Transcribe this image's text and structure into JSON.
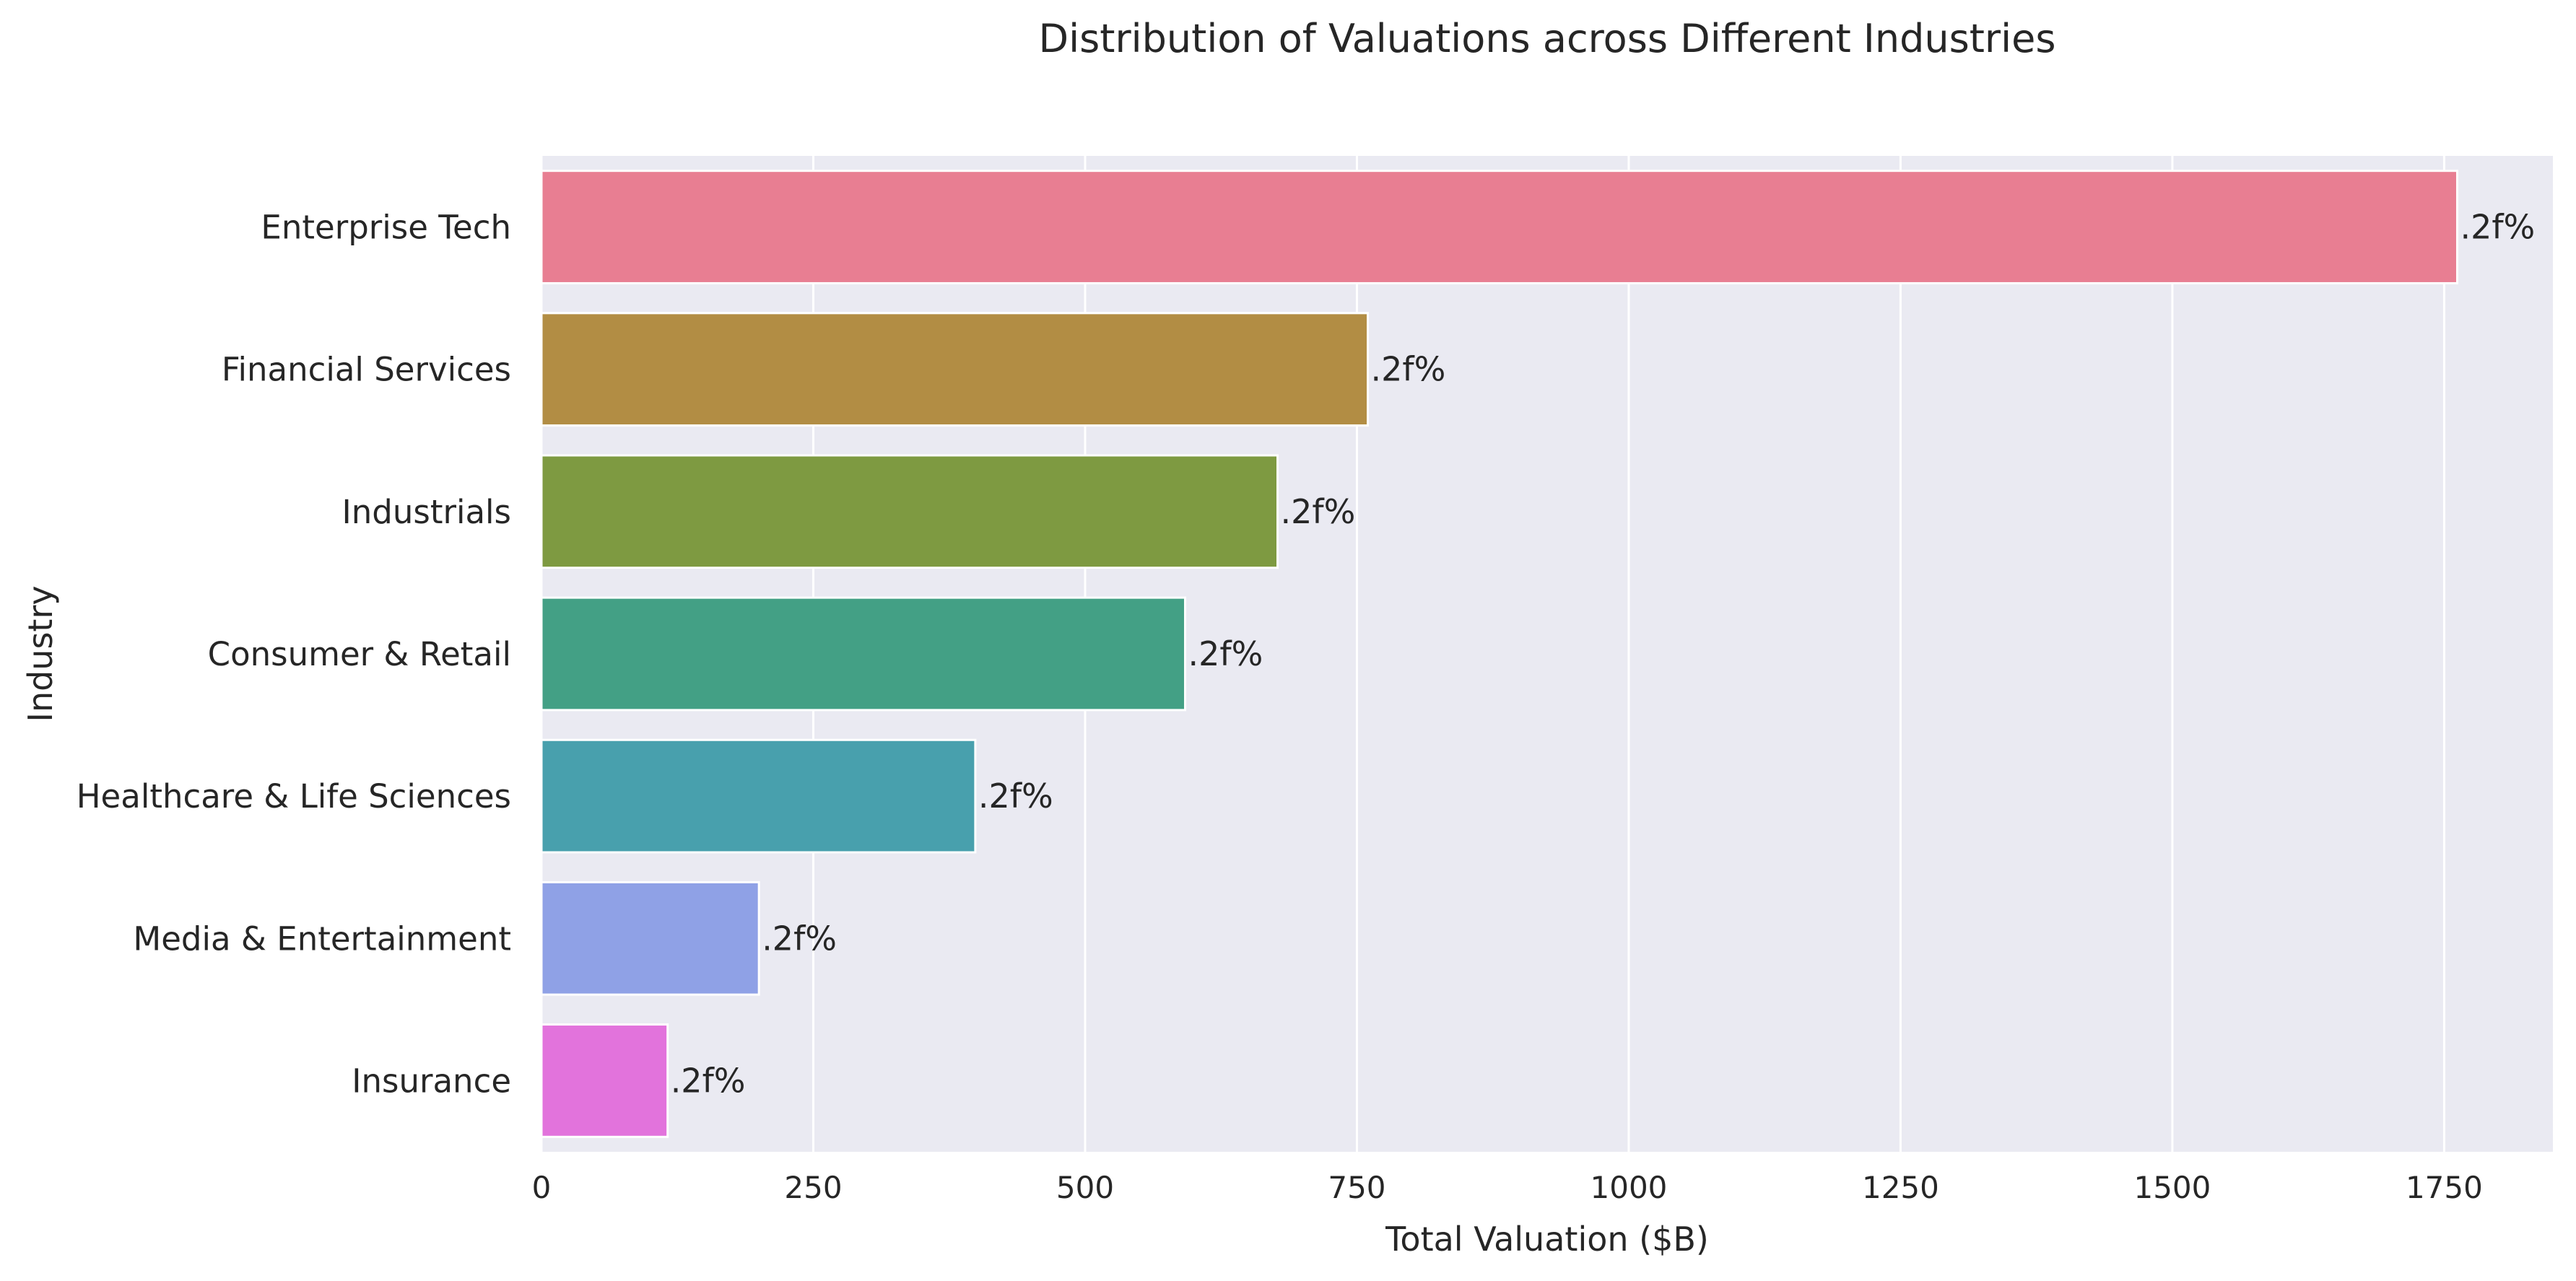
{
  "chart_data": {
    "type": "bar",
    "orientation": "horizontal",
    "title": "Distribution of Valuations across Different Industries",
    "xlabel": "Total Valuation ($B)",
    "ylabel": "Industry",
    "xlim": [
      0,
      1850
    ],
    "xticks": [
      0,
      250,
      500,
      750,
      1000,
      1250,
      1500,
      1750
    ],
    "grid": true,
    "legend": "none",
    "categories": [
      "Enterprise Tech",
      "Financial Services",
      "Industrials",
      "Consumer & Retail",
      "Healthcare & Life Sciences",
      "Media & Entertainment",
      "Insurance"
    ],
    "values": [
      1762,
      760,
      677,
      592,
      399,
      200,
      116
    ],
    "data_labels": [
      ".2f%",
      ".2f%",
      ".2f%",
      ".2f%",
      ".2f%",
      ".2f%",
      ".2f%"
    ],
    "colors": [
      "#e87e92",
      "#b28d44",
      "#7e9a41",
      "#43a085",
      "#48a0ad",
      "#8fa1e6",
      "#e273dc"
    ],
    "background_color": "#eaeaf2",
    "grid_color": "#ffffff"
  }
}
